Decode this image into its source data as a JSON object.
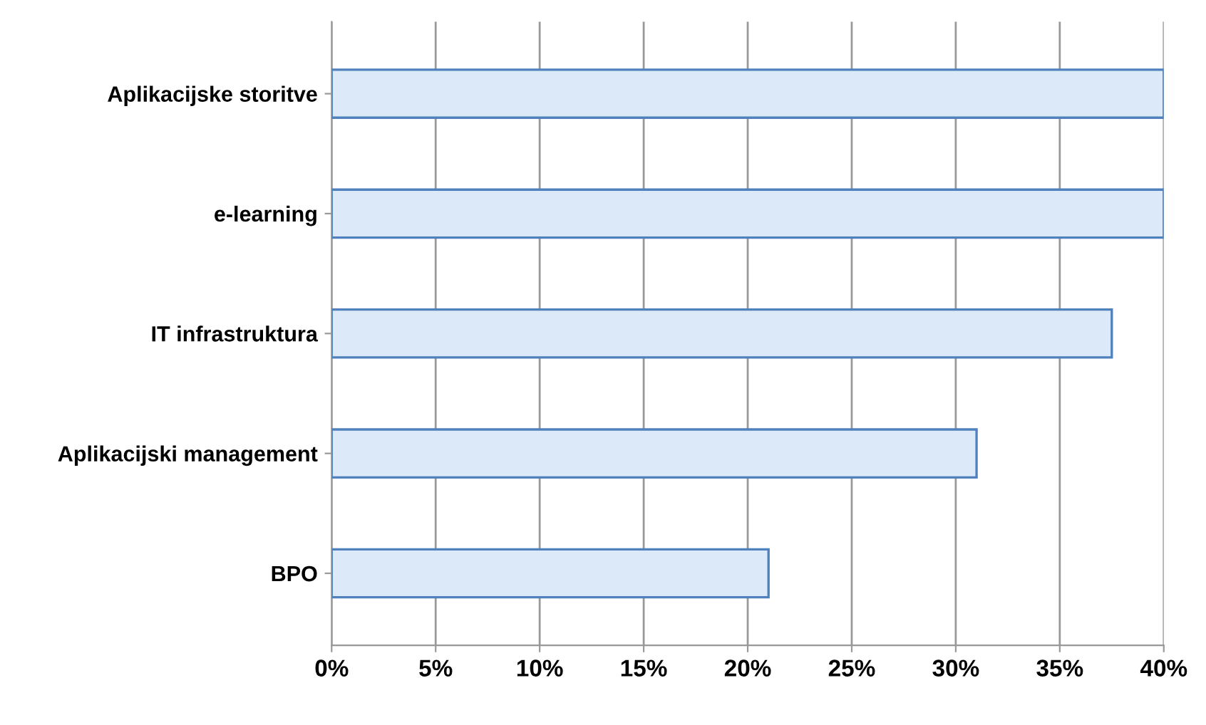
{
  "chart_data": {
    "type": "bar",
    "orientation": "horizontal",
    "categories": [
      "Aplikacijske storitve",
      "e-learning",
      "IT infrastruktura",
      "Aplikacijski management",
      "BPO"
    ],
    "values": [
      40,
      40,
      37.5,
      31,
      21
    ],
    "color": "#dce9f8",
    "xlim": [
      0,
      40
    ],
    "xticks": [
      {
        "value": 0,
        "label": "0%"
      },
      {
        "value": 5,
        "label": "5%"
      },
      {
        "value": 10,
        "label": "10%"
      },
      {
        "value": 15,
        "label": "15%"
      },
      {
        "value": 20,
        "label": "20%"
      },
      {
        "value": 25,
        "label": "25%"
      },
      {
        "value": 30,
        "label": "30%"
      },
      {
        "value": 35,
        "label": "35%"
      },
      {
        "value": 40,
        "label": "40%"
      }
    ],
    "grid": "x",
    "legend": false
  }
}
